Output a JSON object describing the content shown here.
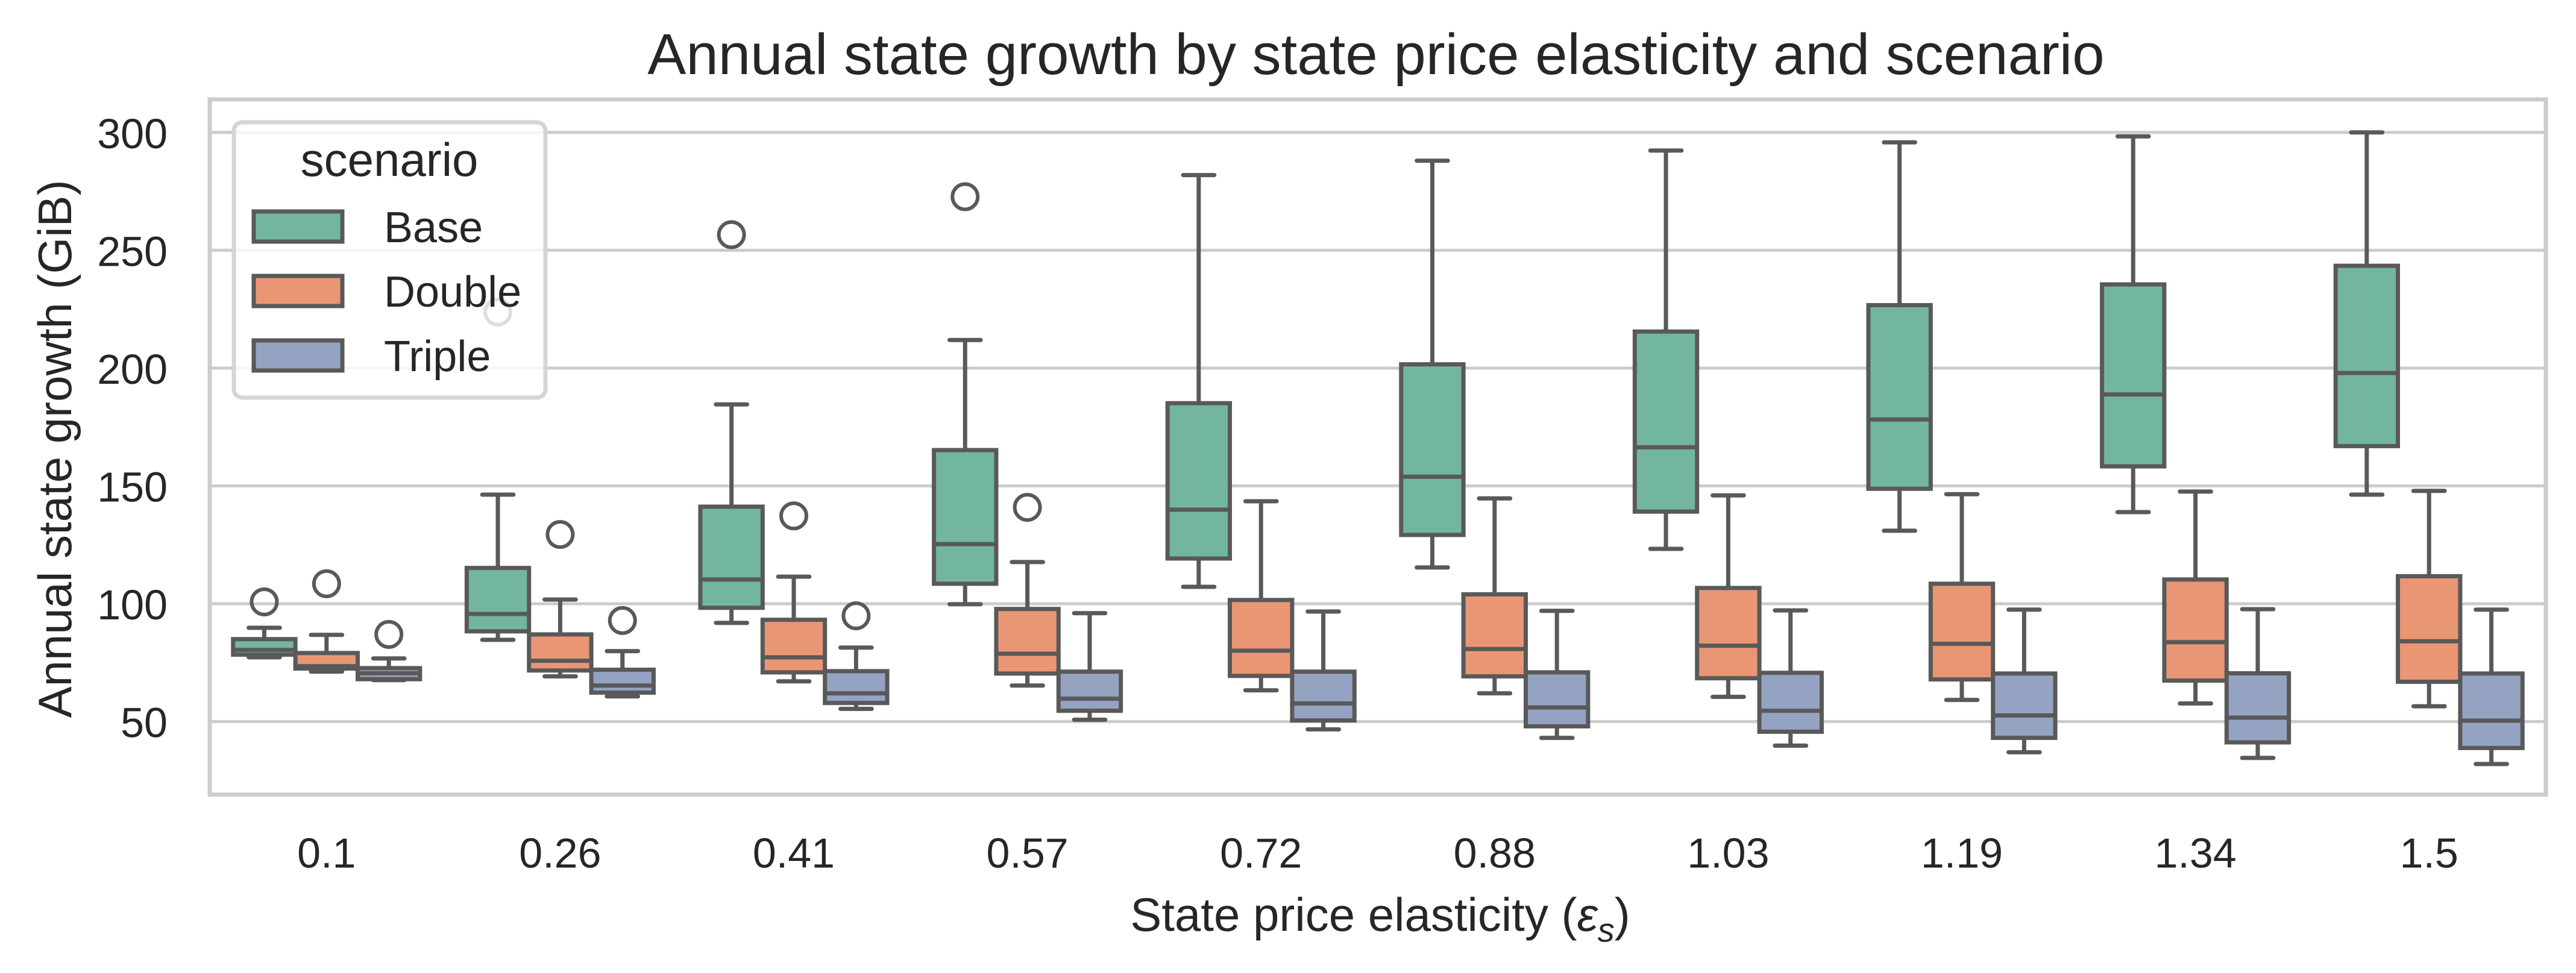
{
  "chart_data": {
    "type": "box",
    "title": "Annual state growth by state price elasticity and scenario",
    "xlabel": "State price elasticity (",
    "xlabel_symbol": "ε",
    "xlabel_subscript": "s",
    "xlabel_suffix": ")",
    "ylabel": "Annual state growth (GiB)",
    "ylim": [
      19,
      314
    ],
    "yticks": [
      50,
      100,
      150,
      200,
      250,
      300
    ],
    "grid": "horizontal",
    "categories": [
      "0.1",
      "0.26",
      "0.41",
      "0.57",
      "0.72",
      "0.88",
      "1.03",
      "1.19",
      "1.34",
      "1.5"
    ],
    "legend": {
      "title": "scenario",
      "placement": "upper-left"
    },
    "series": [
      {
        "name": "Base",
        "color": "#72b6a1",
        "boxes": [
          {
            "whislo": 77.3,
            "q1": 78.4,
            "med": 80.4,
            "q3": 85.0,
            "whishi": 89.8,
            "fliers": [
              100.8
            ]
          },
          {
            "whislo": 84.7,
            "q1": 88.3,
            "med": 95.7,
            "q3": 115.2,
            "whishi": 146.3,
            "fliers": [
              223.8
            ]
          },
          {
            "whislo": 91.9,
            "q1": 98.3,
            "med": 110.3,
            "q3": 141.2,
            "whishi": 184.6,
            "fliers": [
              256.6
            ]
          },
          {
            "whislo": 99.8,
            "q1": 108.5,
            "med": 125.3,
            "q3": 165.2,
            "whishi": 211.9,
            "fliers": [
              272.7
            ]
          },
          {
            "whislo": 107.2,
            "q1": 119.2,
            "med": 139.9,
            "q3": 185.1,
            "whishi": 281.9,
            "fliers": []
          },
          {
            "whislo": 115.4,
            "q1": 129.2,
            "med": 153.9,
            "q3": 201.6,
            "whishi": 288.0,
            "fliers": []
          },
          {
            "whislo": 123.3,
            "q1": 139.1,
            "med": 166.4,
            "q3": 215.5,
            "whishi": 292.3,
            "fliers": []
          },
          {
            "whislo": 131.0,
            "q1": 148.8,
            "med": 178.2,
            "q3": 226.7,
            "whishi": 295.8,
            "fliers": []
          },
          {
            "whislo": 138.9,
            "q1": 158.3,
            "med": 188.8,
            "q3": 235.5,
            "whishi": 298.3,
            "fliers": []
          },
          {
            "whislo": 146.3,
            "q1": 166.9,
            "med": 197.9,
            "q3": 243.4,
            "whishi": 300.0,
            "fliers": []
          }
        ]
      },
      {
        "name": "Double",
        "color": "#e99675",
        "boxes": [
          {
            "whislo": 71.2,
            "q1": 72.5,
            "med": 73.5,
            "q3": 79.1,
            "whishi": 86.8,
            "fliers": [
              108.5
            ]
          },
          {
            "whislo": 69.2,
            "q1": 71.7,
            "med": 75.8,
            "q3": 87.0,
            "whishi": 101.8,
            "fliers": [
              129.4
            ]
          },
          {
            "whislo": 67.1,
            "q1": 70.9,
            "med": 77.3,
            "q3": 93.2,
            "whishi": 111.5,
            "fliers": [
              137.3
            ]
          },
          {
            "whislo": 65.3,
            "q1": 70.4,
            "med": 78.8,
            "q3": 97.8,
            "whishi": 117.7,
            "fliers": [
              140.9
            ]
          },
          {
            "whislo": 63.3,
            "q1": 69.4,
            "med": 80.1,
            "q3": 101.6,
            "whishi": 143.5,
            "fliers": []
          },
          {
            "whislo": 62.0,
            "q1": 69.2,
            "med": 80.8,
            "q3": 104.0,
            "whishi": 144.7,
            "fliers": []
          },
          {
            "whislo": 60.5,
            "q1": 68.4,
            "med": 82.2,
            "q3": 106.7,
            "whishi": 146.0,
            "fliers": []
          },
          {
            "whislo": 59.2,
            "q1": 67.9,
            "med": 83.0,
            "q3": 108.5,
            "whishi": 146.5,
            "fliers": []
          },
          {
            "whislo": 57.7,
            "q1": 67.4,
            "med": 83.7,
            "q3": 110.3,
            "whishi": 147.6,
            "fliers": []
          },
          {
            "whislo": 56.5,
            "q1": 66.9,
            "med": 84.1,
            "q3": 111.7,
            "whishi": 147.9,
            "fliers": []
          }
        ]
      },
      {
        "name": "Triple",
        "color": "#95a3c3",
        "boxes": [
          {
            "whislo": 67.6,
            "q1": 68.0,
            "med": 70.5,
            "q3": 72.7,
            "whishi": 76.8,
            "fliers": [
              87.0
            ]
          },
          {
            "whislo": 60.7,
            "q1": 62.3,
            "med": 65.3,
            "q3": 72.0,
            "whishi": 79.9,
            "fliers": [
              92.9
            ]
          },
          {
            "whislo": 55.4,
            "q1": 57.9,
            "med": 62.0,
            "q3": 71.4,
            "whishi": 81.4,
            "fliers": [
              94.9
            ]
          },
          {
            "whislo": 50.8,
            "q1": 54.6,
            "med": 59.7,
            "q3": 71.2,
            "whishi": 96.0,
            "fliers": []
          },
          {
            "whislo": 46.7,
            "q1": 50.5,
            "med": 57.7,
            "q3": 71.2,
            "whishi": 96.7,
            "fliers": []
          },
          {
            "whislo": 43.1,
            "q1": 48.0,
            "med": 56.0,
            "q3": 70.9,
            "whishi": 97.0,
            "fliers": []
          },
          {
            "whislo": 39.8,
            "q1": 45.7,
            "med": 54.6,
            "q3": 70.7,
            "whishi": 97.2,
            "fliers": []
          },
          {
            "whislo": 37.0,
            "q1": 43.1,
            "med": 52.6,
            "q3": 70.4,
            "whishi": 97.5,
            "fliers": []
          },
          {
            "whislo": 34.6,
            "q1": 41.2,
            "med": 51.7,
            "q3": 70.5,
            "whishi": 97.7,
            "fliers": []
          },
          {
            "whislo": 32.0,
            "q1": 38.8,
            "med": 50.4,
            "q3": 70.4,
            "whishi": 97.5,
            "fliers": []
          }
        ]
      }
    ],
    "colors": {
      "edge": "#595959",
      "grid": "#cccccc",
      "frame": "#cccccc",
      "text": "#262626"
    }
  }
}
